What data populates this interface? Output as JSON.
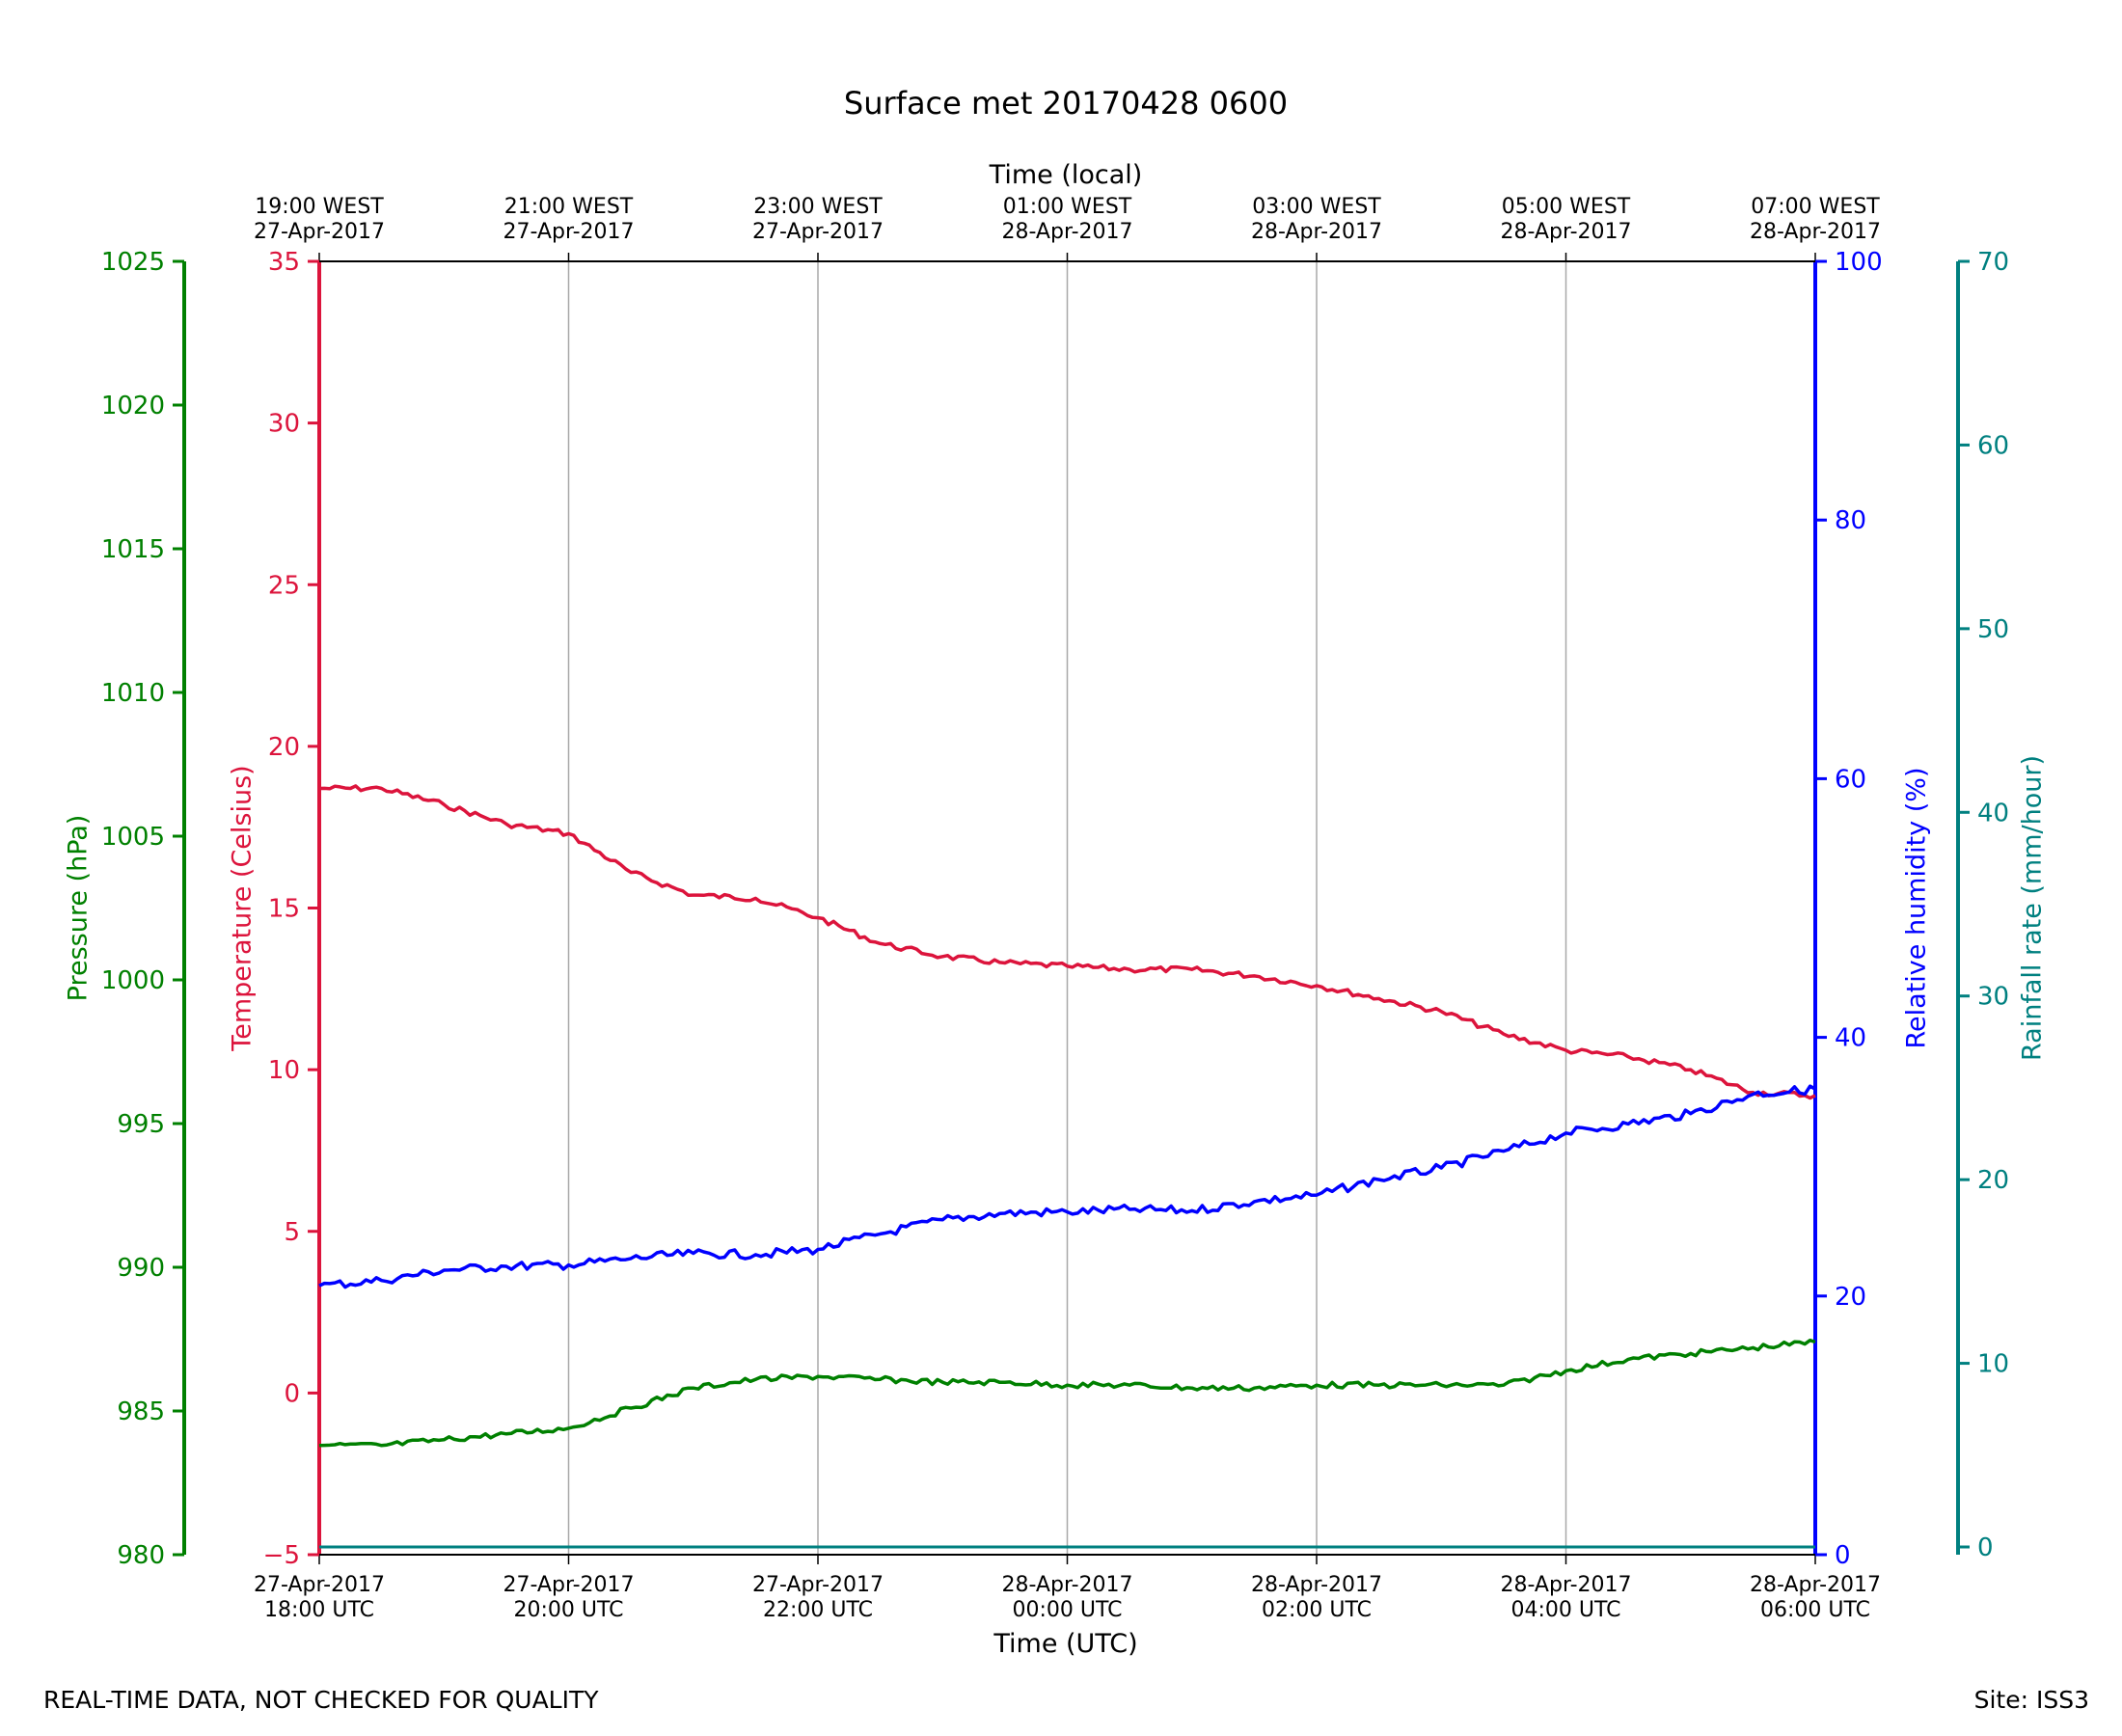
{
  "chart_data": {
    "type": "line",
    "title": "Surface met 20170428 0600",
    "top_axis": {
      "label": "Time (local)",
      "ticks": [
        {
          "line1": "19:00 WEST",
          "line2": "27-Apr-2017"
        },
        {
          "line1": "21:00 WEST",
          "line2": "27-Apr-2017"
        },
        {
          "line1": "23:00 WEST",
          "line2": "27-Apr-2017"
        },
        {
          "line1": "01:00 WEST",
          "line2": "28-Apr-2017"
        },
        {
          "line1": "03:00 WEST",
          "line2": "28-Apr-2017"
        },
        {
          "line1": "05:00 WEST",
          "line2": "28-Apr-2017"
        },
        {
          "line1": "07:00 WEST",
          "line2": "28-Apr-2017"
        }
      ]
    },
    "x_axis": {
      "label": "Time (UTC)",
      "range": [
        "2017-04-27T18:00Z",
        "2017-04-28T06:00Z"
      ],
      "ticks": [
        {
          "t": "2017-04-27T18:00Z",
          "line1": "27-Apr-2017",
          "line2": "18:00 UTC"
        },
        {
          "t": "2017-04-27T20:00Z",
          "line1": "27-Apr-2017",
          "line2": "20:00 UTC"
        },
        {
          "t": "2017-04-27T22:00Z",
          "line1": "27-Apr-2017",
          "line2": "22:00 UTC"
        },
        {
          "t": "2017-04-28T00:00Z",
          "line1": "28-Apr-2017",
          "line2": "00:00 UTC"
        },
        {
          "t": "2017-04-28T02:00Z",
          "line1": "28-Apr-2017",
          "line2": "02:00 UTC"
        },
        {
          "t": "2017-04-28T04:00Z",
          "line1": "28-Apr-2017",
          "line2": "04:00 UTC"
        },
        {
          "t": "2017-04-28T06:00Z",
          "line1": "28-Apr-2017",
          "line2": "06:00 UTC"
        }
      ]
    },
    "grid": "vertical",
    "axes": [
      {
        "id": "pressure",
        "label": "Pressure (hPa)",
        "side": "left-outer",
        "color": "#008000",
        "ylim": [
          980,
          1025
        ],
        "ticks": [
          980,
          985,
          990,
          995,
          1000,
          1005,
          1010,
          1015,
          1020,
          1025
        ]
      },
      {
        "id": "temperature",
        "label": "Temperature (Celsius)",
        "side": "left-inner",
        "color": "#dc143c",
        "ylim": [
          -5,
          35
        ],
        "ticks": [
          -5,
          0,
          5,
          10,
          15,
          20,
          25,
          30,
          35
        ]
      },
      {
        "id": "humidity",
        "label": "Relative humidity (%)",
        "side": "right-inner",
        "color": "#0000ff",
        "ylim": [
          0,
          100
        ],
        "ticks": [
          0,
          20,
          40,
          60,
          80,
          100
        ]
      },
      {
        "id": "rainfall",
        "label": "Rainfall rate (mm/hour)",
        "side": "right-outer",
        "color": "#008080",
        "ylim": [
          0,
          70
        ],
        "ticks": [
          0,
          10,
          20,
          30,
          40,
          50,
          60,
          70
        ]
      }
    ],
    "series": [
      {
        "axis": "temperature",
        "color": "#dc143c",
        "x": [
          "2017-04-27T18:00Z",
          "2017-04-27T18:30Z",
          "2017-04-27T19:00Z",
          "2017-04-27T19:30Z",
          "2017-04-27T20:00Z",
          "2017-04-27T20:30Z",
          "2017-04-27T21:00Z",
          "2017-04-27T21:30Z",
          "2017-04-27T22:00Z",
          "2017-04-27T22:30Z",
          "2017-04-27T23:00Z",
          "2017-04-27T23:30Z",
          "2017-04-28T00:00Z",
          "2017-04-28T00:30Z",
          "2017-04-28T01:00Z",
          "2017-04-28T01:30Z",
          "2017-04-28T02:00Z",
          "2017-04-28T02:30Z",
          "2017-04-28T03:00Z",
          "2017-04-28T03:30Z",
          "2017-04-28T04:00Z",
          "2017-04-28T04:30Z",
          "2017-04-28T05:00Z",
          "2017-04-28T05:30Z",
          "2017-04-28T06:00Z"
        ],
        "y": [
          18.7,
          18.7,
          18.2,
          17.6,
          17.3,
          16.1,
          15.4,
          15.3,
          14.7,
          13.9,
          13.5,
          13.3,
          13.2,
          13.1,
          13.1,
          12.9,
          12.6,
          12.2,
          11.8,
          11.1,
          10.6,
          10.4,
          10.0,
          9.3,
          9.2
        ]
      },
      {
        "axis": "humidity",
        "color": "#0000ff",
        "x": [
          "2017-04-27T18:00Z",
          "2017-04-27T18:30Z",
          "2017-04-27T19:00Z",
          "2017-04-27T19:30Z",
          "2017-04-27T20:00Z",
          "2017-04-27T20:30Z",
          "2017-04-27T21:00Z",
          "2017-04-27T21:30Z",
          "2017-04-27T22:00Z",
          "2017-04-27T22:30Z",
          "2017-04-27T23:00Z",
          "2017-04-27T23:30Z",
          "2017-04-28T00:00Z",
          "2017-04-28T00:30Z",
          "2017-04-28T01:00Z",
          "2017-04-28T01:30Z",
          "2017-04-28T02:00Z",
          "2017-04-28T02:30Z",
          "2017-04-28T03:00Z",
          "2017-04-28T03:30Z",
          "2017-04-28T04:00Z",
          "2017-04-28T04:30Z",
          "2017-04-28T05:00Z",
          "2017-04-28T05:30Z",
          "2017-04-28T06:00Z"
        ],
        "y": [
          20.8,
          21.2,
          22.0,
          22.3,
          22.4,
          22.9,
          23.3,
          23.2,
          23.6,
          24.8,
          25.9,
          26.4,
          26.5,
          26.7,
          26.6,
          27.3,
          27.8,
          29.0,
          29.9,
          31.2,
          32.6,
          33.3,
          34.1,
          35.6,
          36.0
        ]
      },
      {
        "axis": "pressure",
        "color": "#008000",
        "x": [
          "2017-04-27T18:00Z",
          "2017-04-27T18:30Z",
          "2017-04-27T19:00Z",
          "2017-04-27T19:30Z",
          "2017-04-27T20:00Z",
          "2017-04-27T20:30Z",
          "2017-04-27T21:00Z",
          "2017-04-27T21:30Z",
          "2017-04-27T22:00Z",
          "2017-04-27T22:30Z",
          "2017-04-27T23:00Z",
          "2017-04-27T23:30Z",
          "2017-04-28T00:00Z",
          "2017-04-28T00:30Z",
          "2017-04-28T01:00Z",
          "2017-04-28T01:30Z",
          "2017-04-28T02:00Z",
          "2017-04-28T02:30Z",
          "2017-04-28T03:00Z",
          "2017-04-28T03:30Z",
          "2017-04-28T04:00Z",
          "2017-04-28T04:30Z",
          "2017-04-28T05:00Z",
          "2017-04-28T05:30Z",
          "2017-04-28T06:00Z"
        ],
        "y": [
          983.8,
          983.8,
          984.0,
          984.2,
          984.4,
          985.1,
          985.8,
          986.1,
          986.2,
          986.1,
          986.0,
          986.0,
          985.9,
          985.9,
          985.8,
          985.8,
          985.9,
          985.9,
          985.9,
          985.9,
          986.4,
          986.8,
          987.0,
          987.2,
          987.4
        ]
      },
      {
        "axis": "rainfall",
        "color": "#008080",
        "x": [
          "2017-04-27T18:00Z",
          "2017-04-28T06:00Z"
        ],
        "y": [
          0,
          0
        ]
      }
    ]
  },
  "footer": {
    "left": "REAL-TIME DATA, NOT CHECKED FOR QUALITY",
    "right": "Site: ISS3"
  }
}
